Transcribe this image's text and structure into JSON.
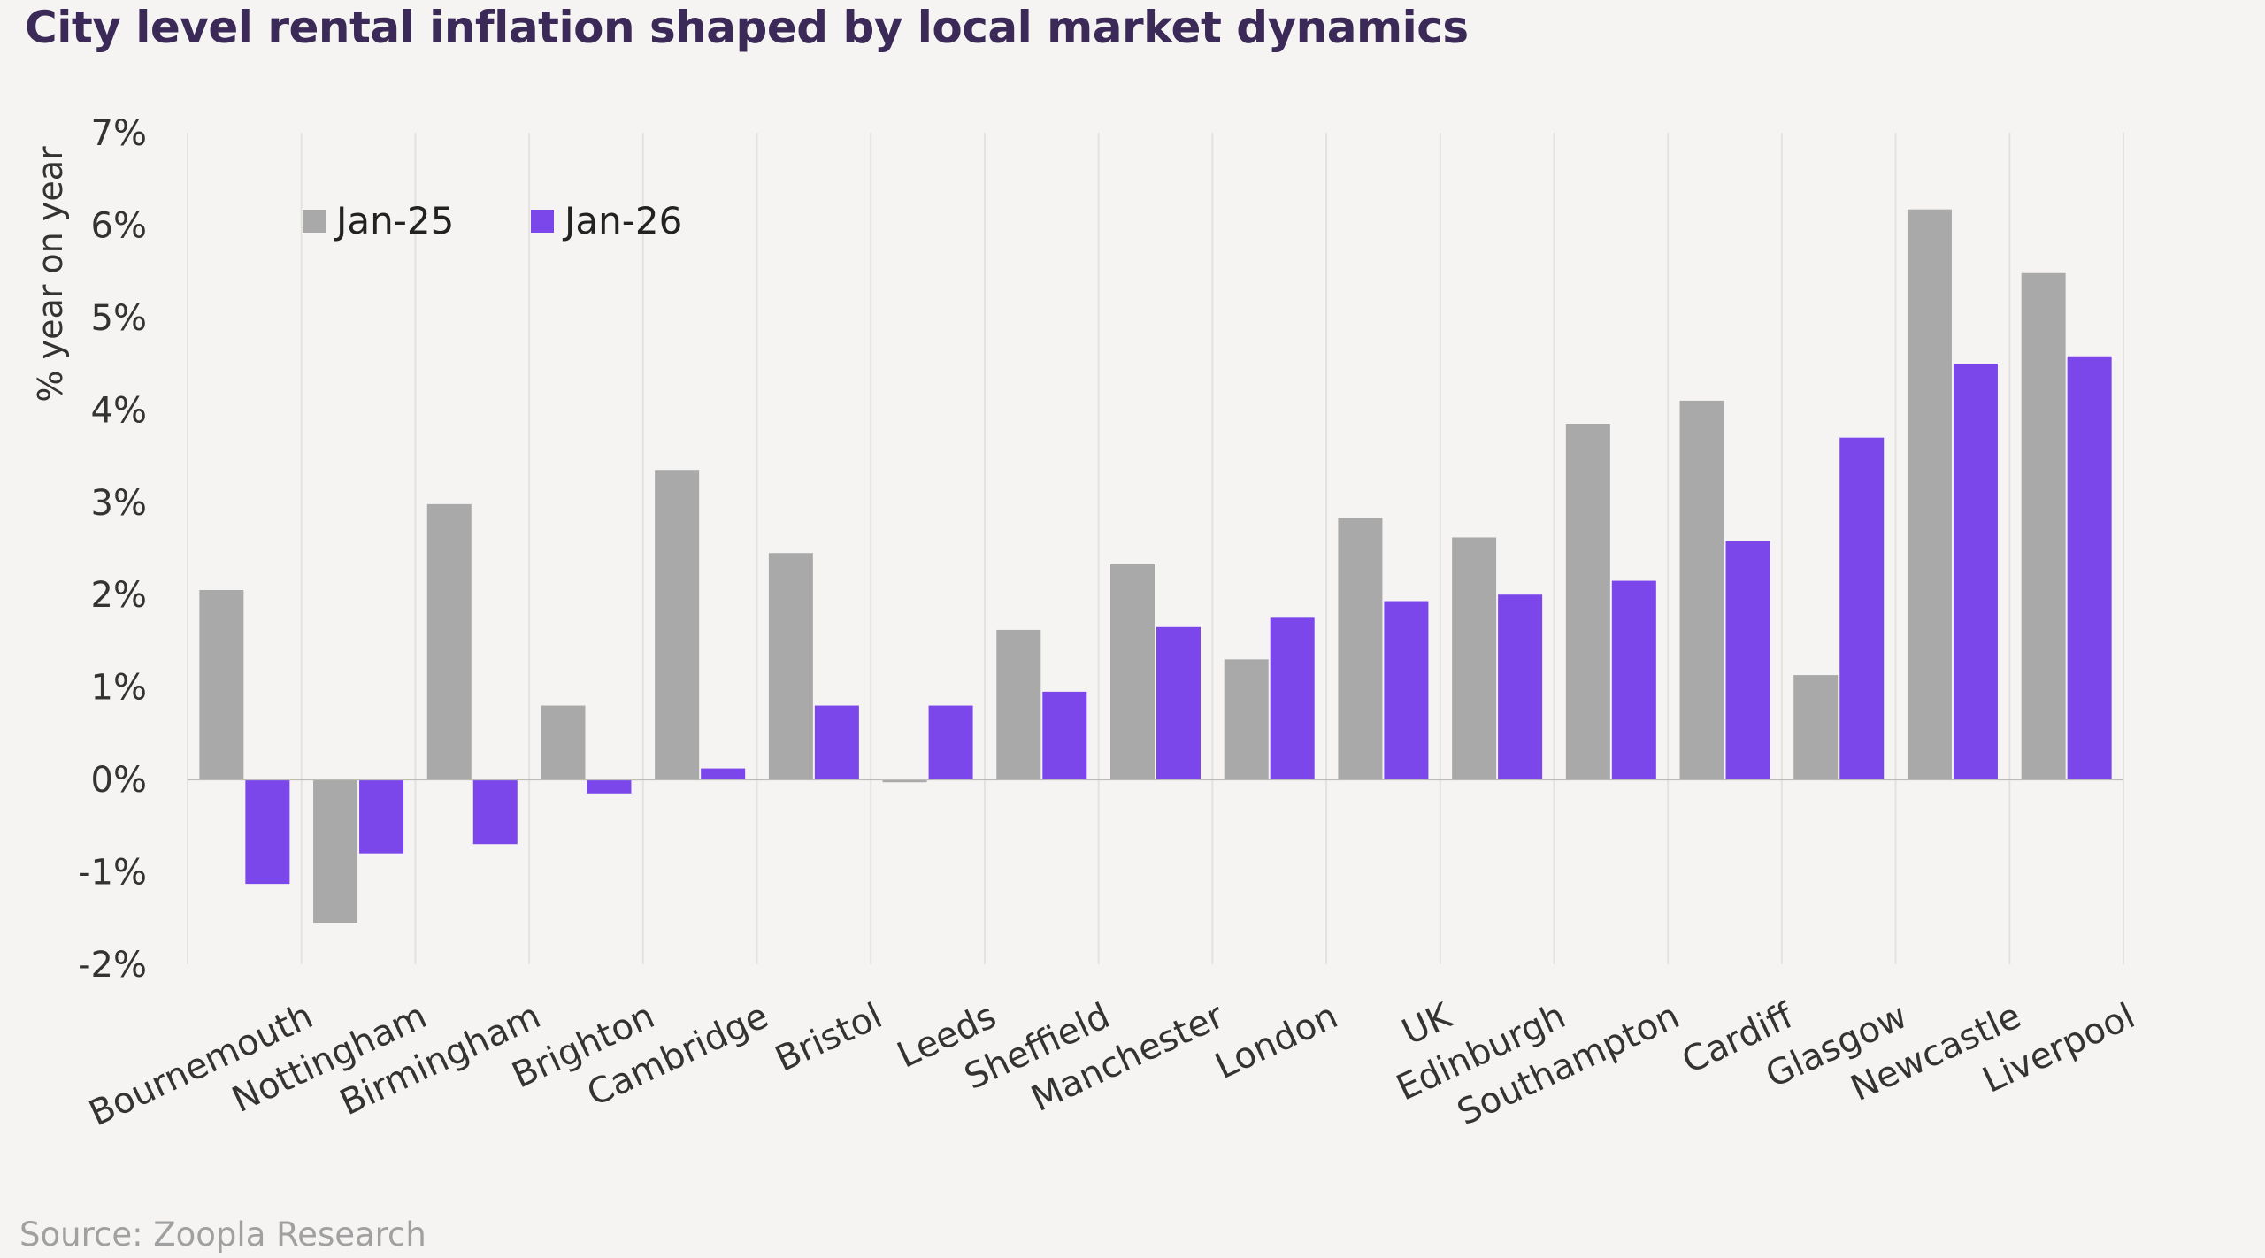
{
  "header": {
    "title": "City level rental inflation shaped by local market dynamics"
  },
  "footer": {
    "source": "Source: Zoopla Research"
  },
  "chart_data": {
    "type": "bar",
    "title": "City level rental inflation shaped by local market dynamics",
    "ylabel": "% year on year",
    "xlabel": "",
    "ylim": [
      -2,
      7
    ],
    "yticks": [
      -2,
      -1,
      0,
      1,
      2,
      3,
      4,
      5,
      6,
      7
    ],
    "ytick_suffix": "%",
    "grid": "vertical",
    "legend_position": "top-left",
    "categories": [
      "Bournemouth",
      "Nottingham",
      "Birmingham",
      "Brighton",
      "Cambridge",
      "Bristol",
      "Leeds",
      "Sheffield",
      "Manchester",
      "London",
      "UK",
      "Edinburgh",
      "Southampton",
      "Cardiff",
      "Glasgow",
      "Newcastle",
      "Liverpool"
    ],
    "series": [
      {
        "name": "Jan-25",
        "color": "#a9a9a9",
        "values": [
          2.05,
          -1.55,
          2.98,
          0.8,
          3.35,
          2.45,
          -0.03,
          1.62,
          2.33,
          1.3,
          2.83,
          2.62,
          3.85,
          4.1,
          1.13,
          6.17,
          5.48
        ]
      },
      {
        "name": "Jan-26",
        "color": "#7b47ea",
        "values": [
          -1.13,
          -0.8,
          -0.7,
          -0.15,
          0.12,
          0.8,
          0.8,
          0.95,
          1.65,
          1.75,
          1.93,
          2.0,
          2.15,
          2.58,
          3.7,
          4.5,
          4.58
        ]
      }
    ]
  }
}
